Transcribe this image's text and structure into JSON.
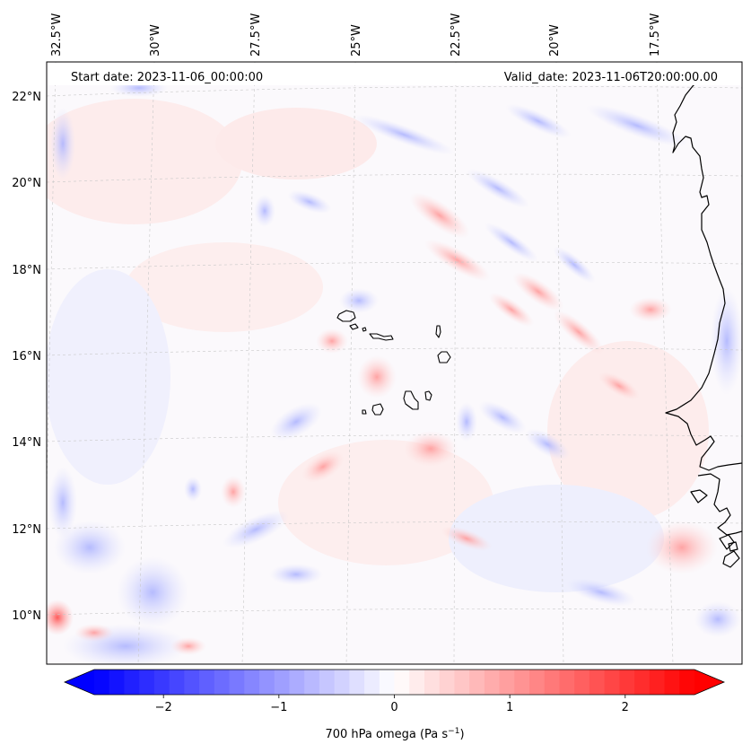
{
  "header": {
    "start_date": "Start date: 2023-11-06_00:00:00",
    "valid_date": "Valid_date: 2023-11-06T20:00:00.00"
  },
  "map": {
    "projection": "lambert-conformal",
    "lon_range": [
      -33.0,
      -15.0
    ],
    "lat_range": [
      8.8,
      22.8
    ],
    "lon_labels": [
      "32.5°W",
      "30°W",
      "27.5°W",
      "25°W",
      "22.5°W",
      "20°W",
      "17.5°W"
    ],
    "lat_labels": [
      "22°N",
      "20°N",
      "18°N",
      "16°N",
      "14°N",
      "12°N",
      "10°N"
    ],
    "gridlines": true,
    "coastline_color": "#000000",
    "features": [
      "Cape Verde islands",
      "West African coastline"
    ]
  },
  "colorbar": {
    "label": "700 hPa omega (Pa s",
    "label_sup": "−1",
    "label_close": ")",
    "ticks": [
      "−2",
      "−1",
      "0",
      "1",
      "2"
    ],
    "tick_values": [
      -2,
      -1,
      0,
      1,
      2
    ],
    "range": [
      -2.6,
      2.6
    ],
    "extend": "both",
    "colormap": "bwr",
    "color_low": "#0000ff",
    "color_mid": "#ffffff",
    "color_high": "#ff0000"
  }
}
